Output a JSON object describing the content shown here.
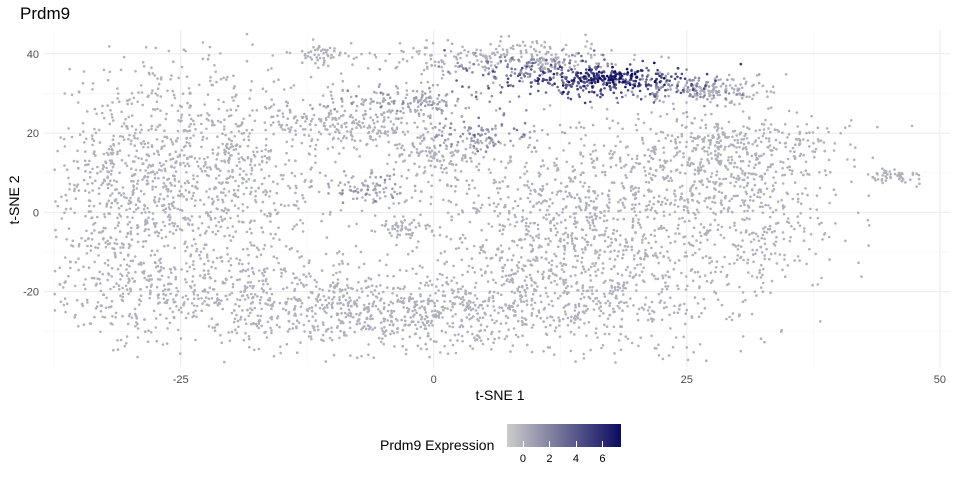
{
  "chart_data": {
    "type": "scatter",
    "title": "Prdm9",
    "xlabel": "t-SNE 1",
    "ylabel": "t-SNE 2",
    "xlim": [
      -38.5,
      51
    ],
    "ylim": [
      -39,
      46
    ],
    "x_ticks": [
      -25,
      0,
      25,
      50
    ],
    "y_ticks": [
      -20,
      0,
      20,
      40
    ],
    "x_tick_labels": [
      "-25",
      "0",
      "25",
      "50"
    ],
    "y_tick_labels": [
      "-20",
      "0",
      "20",
      "40"
    ],
    "grid": true,
    "legend": {
      "title": "Prdm9 Expression",
      "placement": "bottom",
      "scale": "continuous",
      "min": -1.2,
      "max": 7.4,
      "ticks": [
        0,
        2,
        4,
        6
      ],
      "tick_labels": [
        "0",
        "2",
        "4",
        "6"
      ],
      "low_color": "#cccccc",
      "high_color": "#0b0b60"
    },
    "clusters": [
      {
        "cx": -30,
        "cy": 5,
        "sx": 5,
        "sy": 15,
        "n": 650,
        "expr": 0
      },
      {
        "cx": -20,
        "cy": 12,
        "sx": 6,
        "sy": 14,
        "n": 650,
        "expr": 0
      },
      {
        "cx": -24,
        "cy": -20,
        "sx": 8,
        "sy": 6,
        "n": 450,
        "expr": 0
      },
      {
        "cx": -5,
        "cy": -25,
        "sx": 9,
        "sy": 5,
        "n": 650,
        "expr": 0
      },
      {
        "cx": 15,
        "cy": -20,
        "sx": 9,
        "sy": 8,
        "n": 650,
        "expr": 0
      },
      {
        "cx": 12,
        "cy": 0,
        "sx": 7,
        "sy": 10,
        "n": 650,
        "expr": 0
      },
      {
        "cx": 28,
        "cy": 8,
        "sx": 6,
        "sy": 9,
        "n": 550,
        "expr": 0
      },
      {
        "cx": 33,
        "cy": -8,
        "sx": 3,
        "sy": 4,
        "n": 100,
        "expr": 0
      },
      {
        "cx": 30,
        "cy": 18,
        "sx": 5,
        "sy": 3,
        "n": 200,
        "expr": 0
      },
      {
        "cx": -8,
        "cy": 22,
        "sx": 5,
        "sy": 2.5,
        "n": 220,
        "expr": 0
      },
      {
        "cx": -3,
        "cy": 28,
        "sx": 4,
        "sy": 2,
        "n": 150,
        "expr": 0.3
      },
      {
        "cx": 0,
        "cy": 15,
        "sx": 3,
        "sy": 3,
        "n": 130,
        "expr": 0
      },
      {
        "cx": 5,
        "cy": 20,
        "sx": 3,
        "sy": 2,
        "n": 90,
        "expr": 1.5
      },
      {
        "cx": -6,
        "cy": 6,
        "sx": 2.5,
        "sy": 2,
        "n": 90,
        "expr": 0.4
      },
      {
        "cx": -3,
        "cy": -4,
        "sx": 1.5,
        "sy": 1,
        "n": 40,
        "expr": 0
      },
      {
        "cx": -11,
        "cy": 40,
        "sx": 1.5,
        "sy": 1.5,
        "n": 50,
        "expr": 0
      },
      {
        "cx": 6,
        "cy": 39,
        "sx": 6,
        "sy": 2.5,
        "n": 250,
        "expr": 0
      },
      {
        "cx": 10,
        "cy": 36,
        "sx": 4,
        "sy": 2.5,
        "n": 120,
        "expr": 2.2
      },
      {
        "cx": 17,
        "cy": 33,
        "sx": 4.5,
        "sy": 2,
        "n": 260,
        "expr": 4.5
      },
      {
        "cx": 17,
        "cy": 34,
        "sx": 2.2,
        "sy": 1.2,
        "n": 90,
        "expr": 6.8
      },
      {
        "cx": 25,
        "cy": 31,
        "sx": 3,
        "sy": 2,
        "n": 110,
        "expr": 1.2
      },
      {
        "cx": 29,
        "cy": 31,
        "sx": 2.5,
        "sy": 2,
        "n": 90,
        "expr": 0
      },
      {
        "cx": 45,
        "cy": 9,
        "sx": 1.8,
        "sy": 0.8,
        "n": 50,
        "expr": 0
      }
    ]
  }
}
